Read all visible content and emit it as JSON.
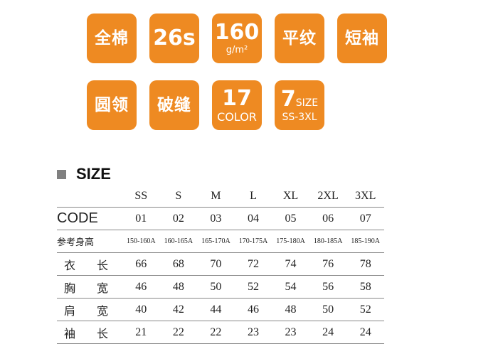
{
  "badges": [
    {
      "main": "全棉"
    },
    {
      "main": "26s"
    },
    {
      "main": "160",
      "sub": "g/m²"
    },
    {
      "main": "平纹"
    },
    {
      "main": "短袖"
    },
    {
      "main": "圆领"
    },
    {
      "main": "破缝"
    },
    {
      "main": "17",
      "sub": "COLOR"
    },
    {
      "main": "7",
      "main_suffix": "SIZE",
      "sub": "SS-3XL"
    }
  ],
  "badge_color": "#ee8a22",
  "size_section": {
    "title": "SIZE",
    "sizes": [
      "SS",
      "S",
      "M",
      "L",
      "XL",
      "2XL",
      "3XL"
    ],
    "rows": [
      {
        "label": "CODE",
        "values": [
          "01",
          "02",
          "03",
          "04",
          "05",
          "06",
          "07"
        ]
      },
      {
        "label": "参考身高",
        "values": [
          "150-160A",
          "160-165A",
          "165-170A",
          "170-175A",
          "175-180A",
          "180-185A",
          "185-190A"
        ]
      },
      {
        "label": [
          "衣",
          "长"
        ],
        "values": [
          "66",
          "68",
          "70",
          "72",
          "74",
          "76",
          "78"
        ]
      },
      {
        "label": [
          "胸",
          "宽"
        ],
        "values": [
          "46",
          "48",
          "50",
          "52",
          "54",
          "56",
          "58"
        ]
      },
      {
        "label": [
          "肩",
          "宽"
        ],
        "values": [
          "40",
          "42",
          "44",
          "46",
          "48",
          "50",
          "52"
        ]
      },
      {
        "label": [
          "袖",
          "长"
        ],
        "values": [
          "21",
          "22",
          "22",
          "23",
          "23",
          "24",
          "24"
        ]
      }
    ]
  }
}
